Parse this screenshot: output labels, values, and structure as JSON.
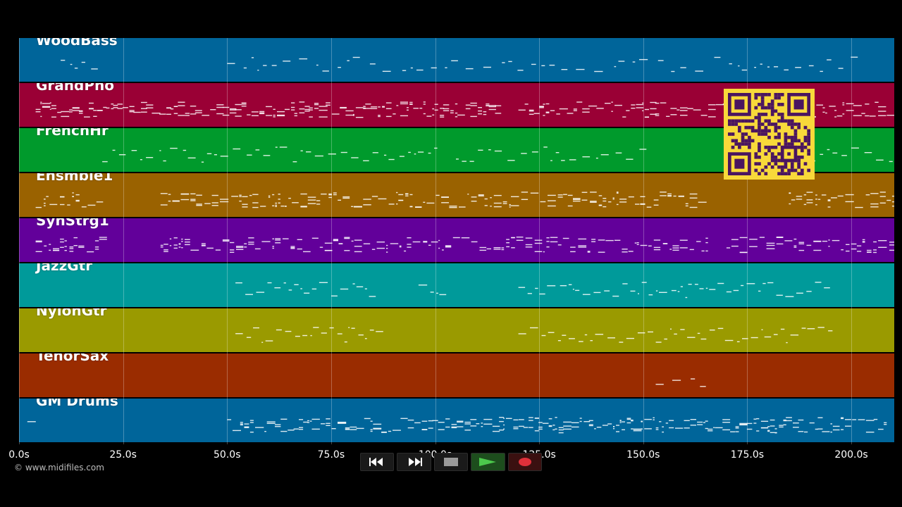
{
  "tracks": [
    {
      "name": "WoodBass",
      "color": "#00659a"
    },
    {
      "name": "GrandPno",
      "color": "#9a0035"
    },
    {
      "name": "FrenchHr",
      "color": "#009a2c"
    },
    {
      "name": "Ensmble1",
      "color": "#9a6200"
    },
    {
      "name": "SynStrg1",
      "color": "#62009a"
    },
    {
      "name": "JazzGtr",
      "color": "#009a9a"
    },
    {
      "name": "NylonGtr",
      "color": "#9a9a00"
    },
    {
      "name": "TenorSax",
      "color": "#9a2c00"
    },
    {
      "name": "GM Drums",
      "color": "#00659a"
    }
  ],
  "timeline": {
    "ticks": [
      "0.0s",
      "25.0s",
      "50.0s",
      "75.0s",
      "100.0s",
      "125.0s",
      "150.0s",
      "175.0s",
      "200.0s"
    ],
    "max_seconds": 210.6
  },
  "copyright": "© www.midifiles.com",
  "transport": {
    "buttons": [
      {
        "name": "rewind-button",
        "icon": "rewind-icon"
      },
      {
        "name": "fast-forward-button",
        "icon": "fast-forward-icon"
      },
      {
        "name": "stop-button",
        "icon": "stop-icon"
      },
      {
        "name": "play-button",
        "icon": "play-icon"
      },
      {
        "name": "record-button",
        "icon": "record-icon"
      }
    ]
  },
  "qr_code": {
    "color": "#f8d93a",
    "module_color": "#4a1560"
  }
}
